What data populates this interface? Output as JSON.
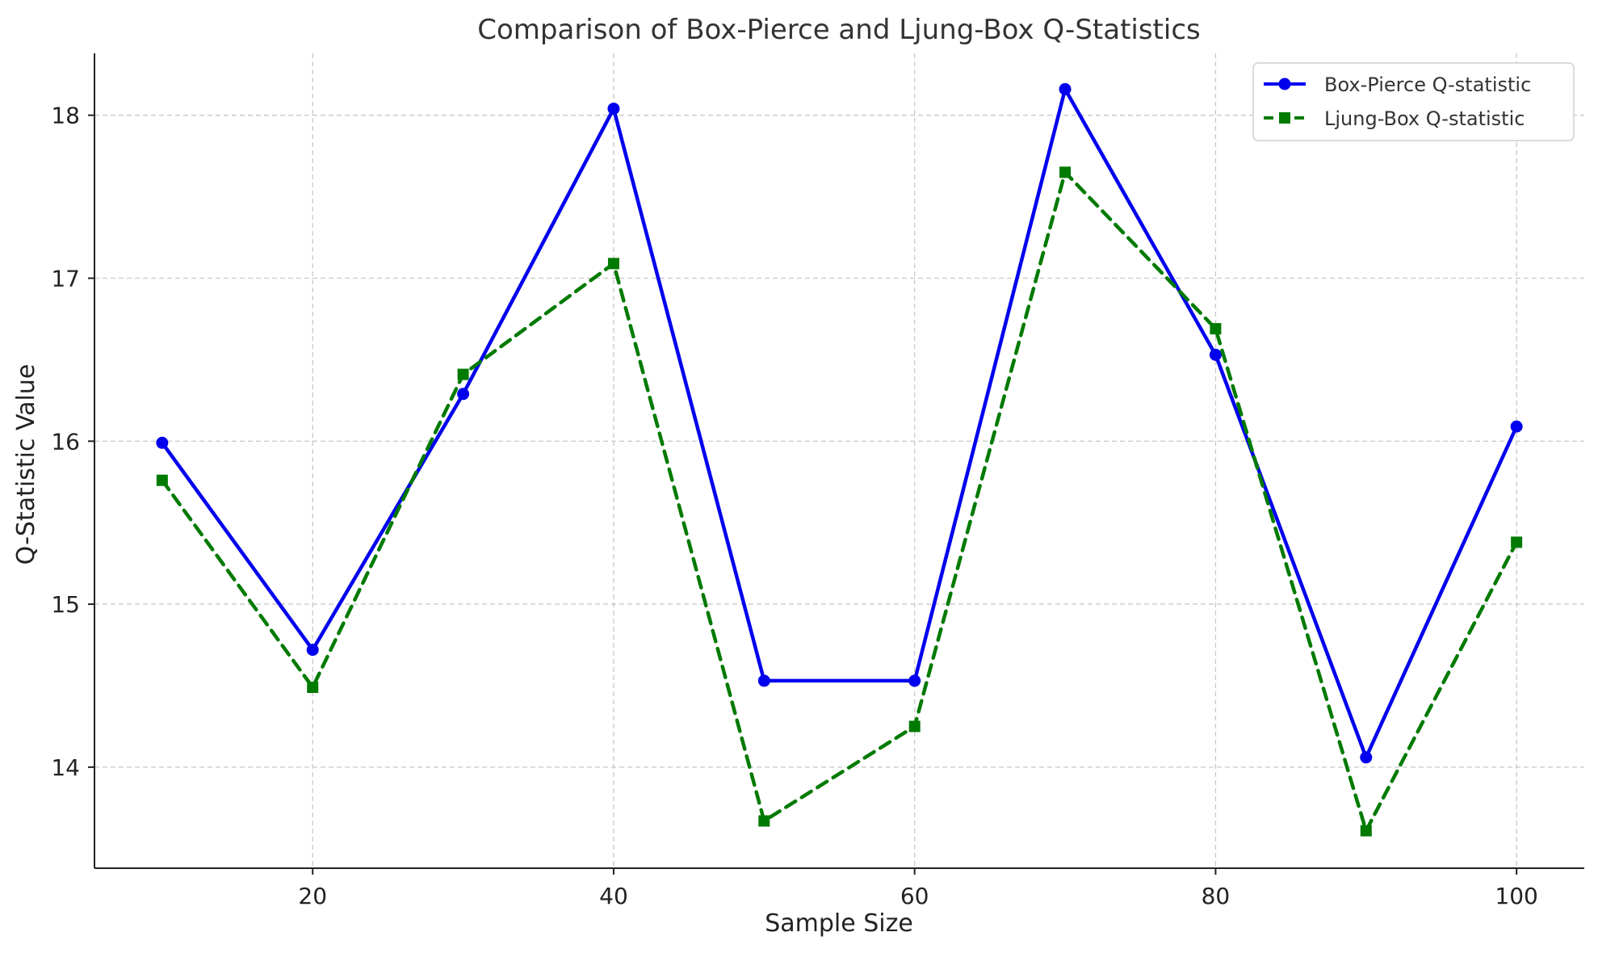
{
  "chart_data": {
    "type": "line",
    "title": "Comparison of Box-Pierce and Ljung-Box Q-Statistics",
    "xlabel": "Sample Size",
    "ylabel": "Q-Statistic Value",
    "x": [
      10,
      20,
      30,
      40,
      50,
      60,
      70,
      80,
      90,
      100
    ],
    "xlim": [
      5.5,
      104.5
    ],
    "ylim": [
      13.38,
      18.38
    ],
    "xticks": [
      20,
      40,
      60,
      80,
      100
    ],
    "yticks": [
      14,
      15,
      16,
      17,
      18
    ],
    "grid": true,
    "legend_position": "top-right",
    "series": [
      {
        "name": "Box-Pierce Q-statistic",
        "color": "#0000ee",
        "line_style": "solid",
        "marker": "circle",
        "values": [
          15.99,
          14.72,
          16.29,
          18.04,
          14.53,
          14.53,
          18.16,
          16.53,
          14.06,
          16.09
        ]
      },
      {
        "name": "Ljung-Box Q-statistic",
        "color": "#007a00",
        "line_style": "dashed",
        "marker": "square",
        "values": [
          15.76,
          14.49,
          16.41,
          17.09,
          13.67,
          14.25,
          17.65,
          16.69,
          13.61,
          15.38
        ]
      }
    ]
  }
}
